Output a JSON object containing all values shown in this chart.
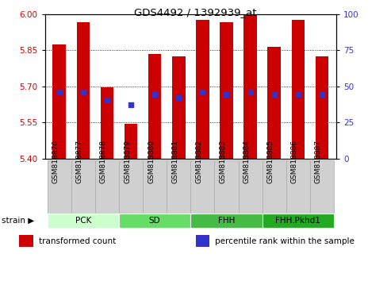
{
  "title": "GDS4492 / 1392939_at",
  "samples": [
    "GSM818876",
    "GSM818877",
    "GSM818878",
    "GSM818879",
    "GSM818880",
    "GSM818881",
    "GSM818882",
    "GSM818883",
    "GSM818884",
    "GSM818885",
    "GSM818886",
    "GSM818887"
  ],
  "bar_values": [
    5.875,
    5.965,
    5.695,
    5.545,
    5.835,
    5.825,
    5.975,
    5.965,
    6.0,
    5.865,
    5.975,
    5.825
  ],
  "percentile_values": [
    5.675,
    5.675,
    5.645,
    5.625,
    5.665,
    5.655,
    5.675,
    5.665,
    5.675,
    5.665,
    5.665,
    5.665
  ],
  "ymin": 5.4,
  "ymax": 6.0,
  "yticks_left": [
    5.4,
    5.55,
    5.7,
    5.85,
    6.0
  ],
  "yticks_right": [
    0,
    25,
    50,
    75,
    100
  ],
  "bar_color": "#cc0000",
  "percentile_color": "#3333cc",
  "groups": [
    {
      "label": "PCK",
      "start": 0,
      "end": 3,
      "color": "#ccffcc"
    },
    {
      "label": "SD",
      "start": 3,
      "end": 6,
      "color": "#66dd66"
    },
    {
      "label": "FHH",
      "start": 6,
      "end": 9,
      "color": "#44bb44"
    },
    {
      "label": "FHH.Pkhd1",
      "start": 9,
      "end": 12,
      "color": "#22aa22"
    }
  ],
  "group_row_color": "#aaddaa",
  "group_label_text": "strain",
  "legend_items": [
    {
      "label": "transformed count",
      "color": "#cc0000"
    },
    {
      "label": "percentile rank within the sample",
      "color": "#3333cc"
    }
  ],
  "bar_width": 0.55,
  "background_color": "#ffffff",
  "tick_label_color_left": "#cc0000",
  "tick_label_color_right": "#3333cc",
  "xtick_bg": "#d0d0d0",
  "xtick_border": "#aaaaaa"
}
